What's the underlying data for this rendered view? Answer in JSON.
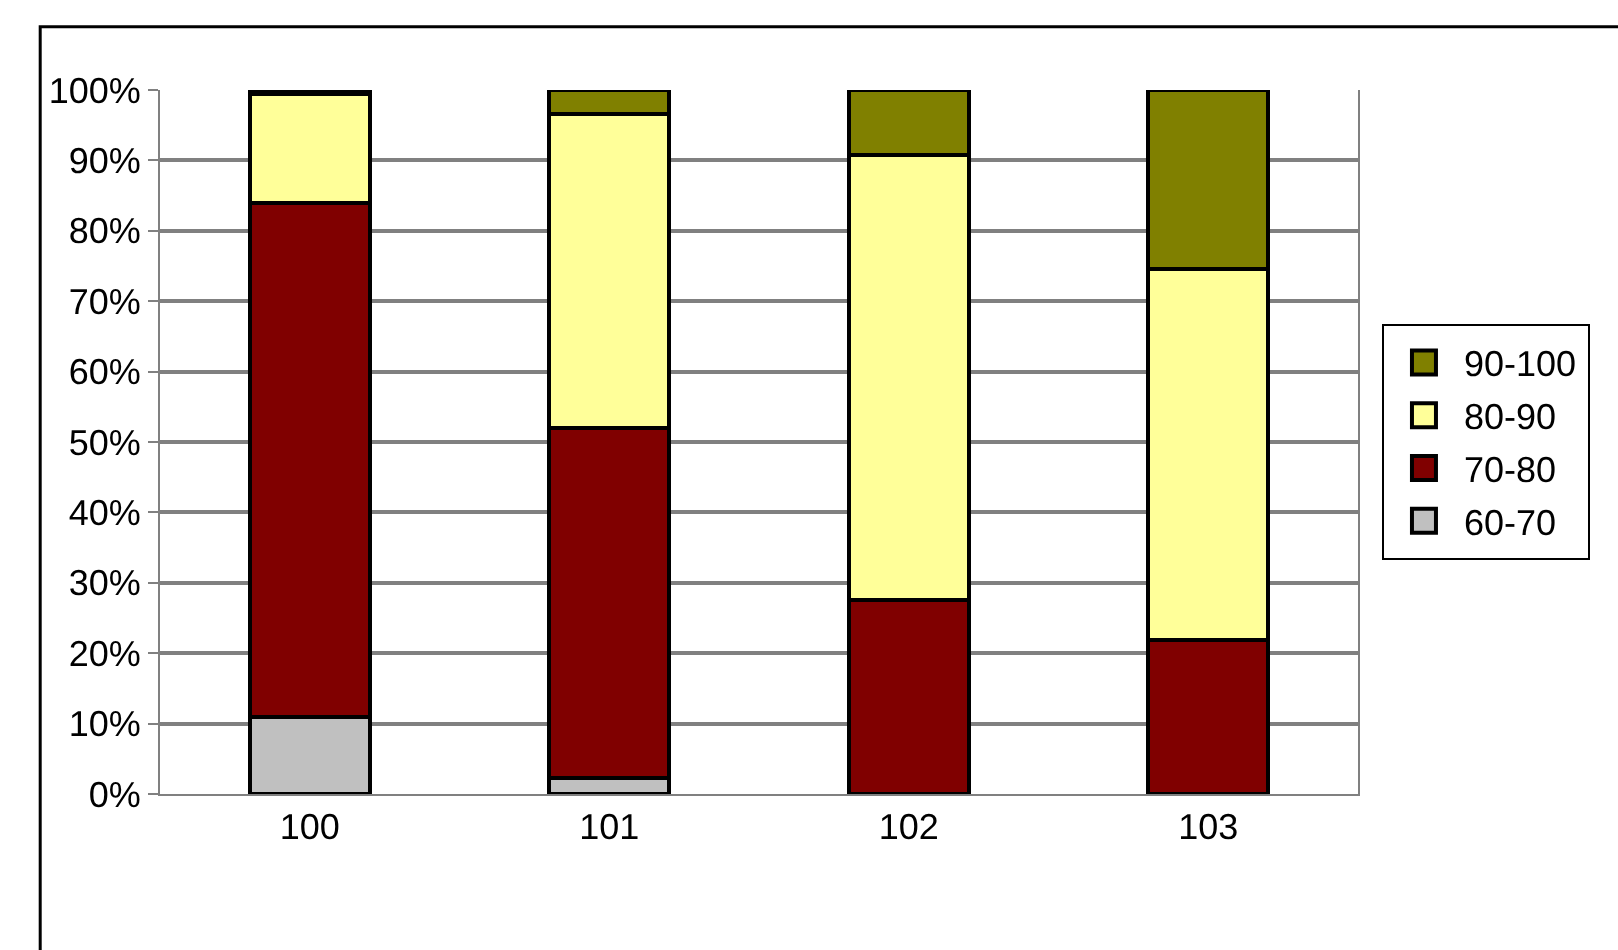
{
  "chart_data": {
    "type": "bar",
    "stacked": true,
    "categories": [
      "100",
      "101",
      "102",
      "103"
    ],
    "series": [
      {
        "name": "60-70",
        "color": "#c0c0c0",
        "values": [
          11,
          2.3,
          0,
          0
        ]
      },
      {
        "name": "70-80",
        "color": "#800000",
        "values": [
          73,
          49.7,
          27.5,
          21.9
        ]
      },
      {
        "name": "80-90",
        "color": "#ffff99",
        "values": [
          15.5,
          44.6,
          63.3,
          52.7
        ]
      },
      {
        "name": "90-100",
        "color": "#808000",
        "values": [
          0.5,
          3.4,
          9.2,
          25.4
        ]
      }
    ],
    "ylim": [
      0,
      100
    ],
    "yticks": [
      {
        "value": 0,
        "label": "0%"
      },
      {
        "value": 10,
        "label": "10%"
      },
      {
        "value": 20,
        "label": "20%"
      },
      {
        "value": 30,
        "label": "30%"
      },
      {
        "value": 40,
        "label": "40%"
      },
      {
        "value": 50,
        "label": "50%"
      },
      {
        "value": 60,
        "label": "60%"
      },
      {
        "value": 70,
        "label": "70%"
      },
      {
        "value": 80,
        "label": "80%"
      },
      {
        "value": 90,
        "label": "90%"
      },
      {
        "value": 100,
        "label": "100%"
      }
    ],
    "grid": "y",
    "legend": "right"
  }
}
